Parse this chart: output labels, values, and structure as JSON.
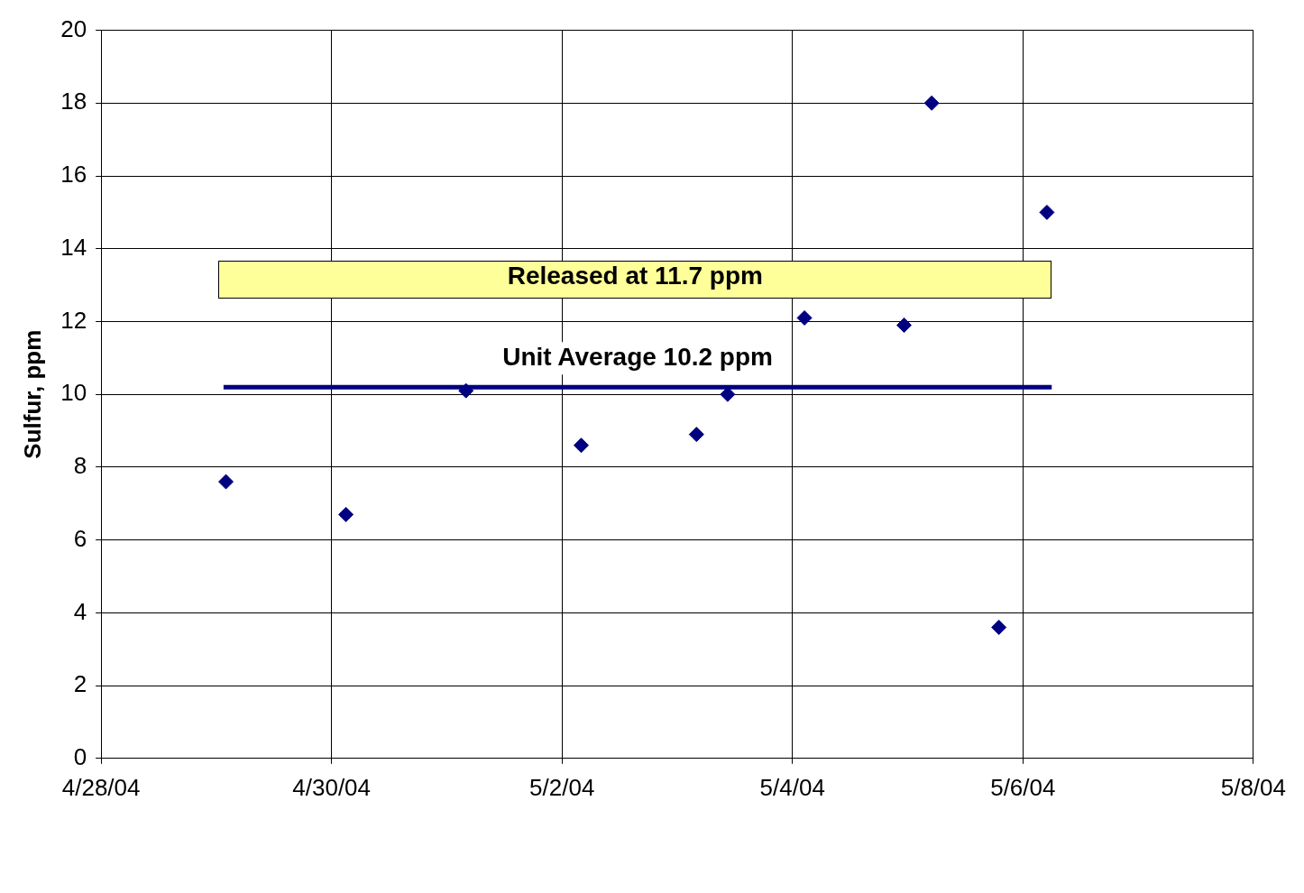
{
  "chart_data": {
    "type": "scatter",
    "ylabel": "Sulfur, ppm",
    "x": [
      "--04-29T02:00",
      "--04-30T03:00",
      "--05-01T04:00",
      "--05-02T04:00",
      "--05-03T04:00",
      "--05-03T10:30",
      "--05-04T02:30",
      "--05-04T23:15",
      "--05-05T05:00",
      "--05-05T19:00",
      "--05-06T05:00"
    ],
    "series": [
      {
        "color": "#000080",
        "marker": "diamond",
        "values": [
          7.6,
          6.7,
          10.1,
          8.6,
          8.9,
          10.0,
          12.1,
          11.9,
          18.0,
          3.6,
          15.0
        ]
      },
      {
        "type": "line",
        "name": "Unit Average 10.2 ppm",
        "color": "#000080",
        "x": [
          "--04-29T01:30",
          "--05-06T06:00"
        ],
        "values": [
          10.2,
          10.2
        ]
      }
    ],
    "xlim": [
      "--04-28",
      "--05-08"
    ],
    "xticks": [
      {
        "value": "--04-28",
        "label": "4/28/04"
      },
      {
        "value": "--04-30",
        "label": "4/30/04"
      },
      {
        "value": "--05-02",
        "label": "5/2/04"
      },
      {
        "value": "--05-04",
        "label": "5/4/04"
      },
      {
        "value": "--05-06",
        "label": "5/6/04"
      },
      {
        "value": "--05-08",
        "label": "5/8/04"
      }
    ],
    "ylim": [
      0,
      20
    ],
    "yticks": [
      0,
      2,
      4,
      6,
      8,
      10,
      12,
      14,
      16,
      18,
      20
    ],
    "grid": true,
    "legend": false,
    "annotations": [
      "Released at 11.7 ppm"
    ]
  }
}
